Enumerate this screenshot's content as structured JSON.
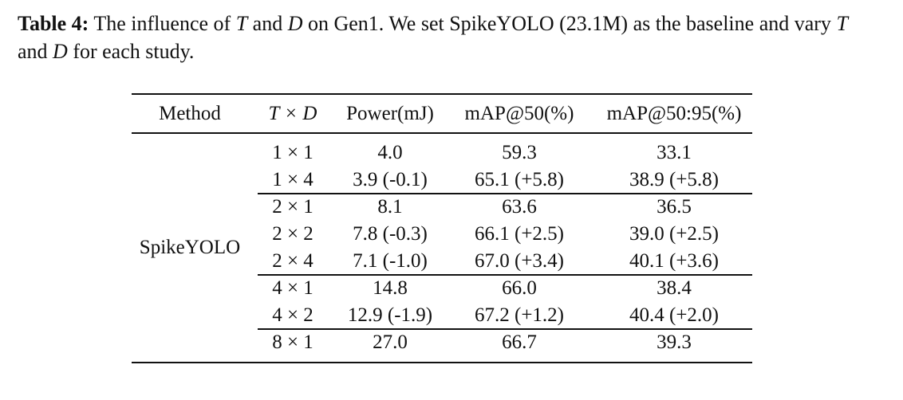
{
  "caption": {
    "label": "Table 4:",
    "segments": [
      "The influence of ",
      "T",
      " and ",
      "D",
      " on Gen1. We set SpikeYOLO (23.1M) as the baseline and vary ",
      "T",
      " and ",
      "D",
      " for each study."
    ]
  },
  "table": {
    "header": [
      "Method",
      "T × D",
      "Power(mJ)",
      "mAP@50(%)",
      "mAP@50:95(%)"
    ],
    "method": "SpikeYOLO",
    "groups": [
      [
        [
          "1 × 1",
          "4.0",
          "59.3",
          "33.1"
        ],
        [
          "1 × 4",
          "3.9 (-0.1)",
          "65.1 (+5.8)",
          "38.9 (+5.8)"
        ]
      ],
      [
        [
          "2 × 1",
          "8.1",
          "63.6",
          "36.5"
        ],
        [
          "2 × 2",
          "7.8 (-0.3)",
          "66.1 (+2.5)",
          "39.0 (+2.5)"
        ],
        [
          "2 × 4",
          "7.1 (-1.0)",
          "67.0 (+3.4)",
          "40.1 (+3.6)"
        ]
      ],
      [
        [
          "4 × 1",
          "14.8",
          "66.0",
          "38.4"
        ],
        [
          "4 × 2",
          "12.9 (-1.9)",
          "67.2 (+1.2)",
          "40.4 (+2.0)"
        ]
      ],
      [
        [
          "8 × 1",
          "27.0",
          "66.7",
          "39.3"
        ]
      ]
    ]
  }
}
